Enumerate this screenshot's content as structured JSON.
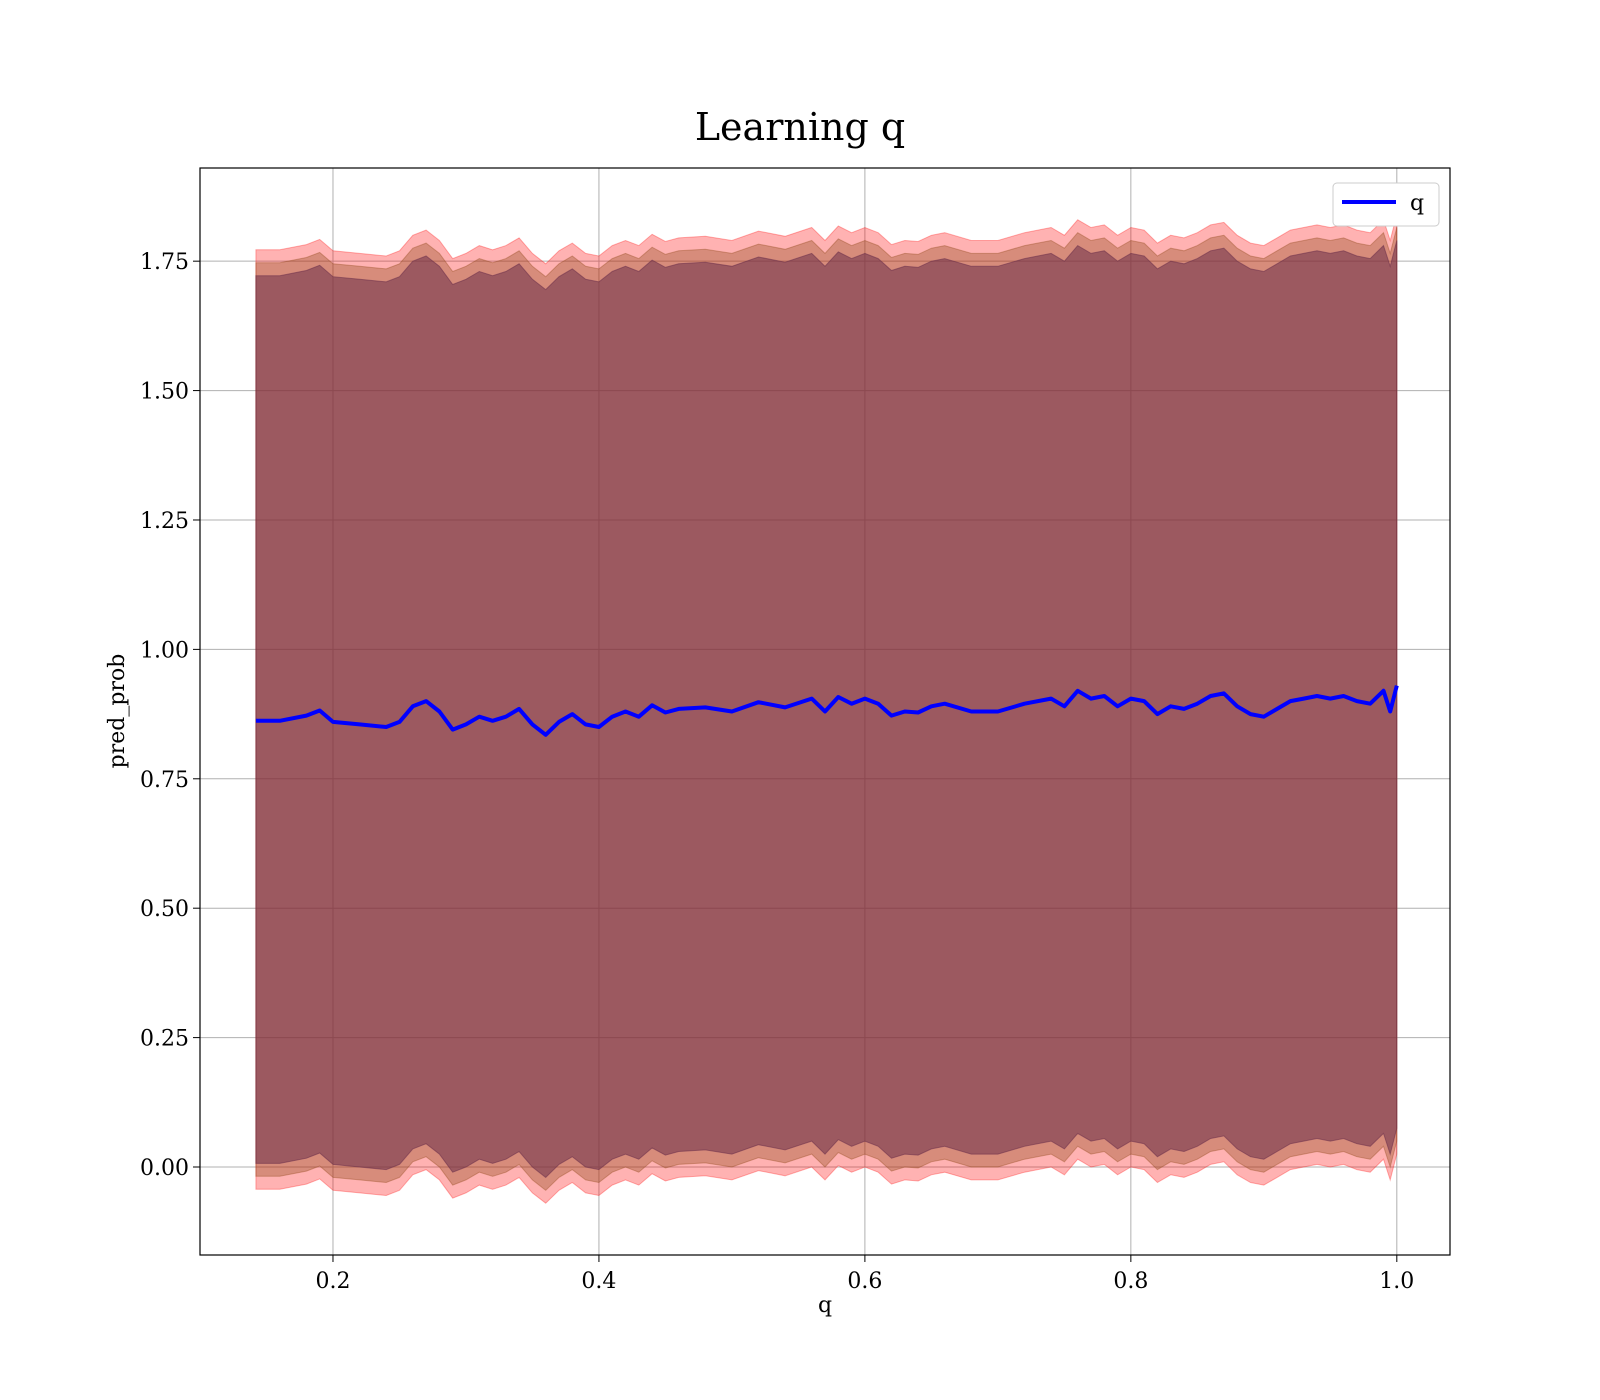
{
  "chart_data": {
    "type": "line",
    "title": "Learning q",
    "xlabel": "q",
    "ylabel": "pred_prob",
    "xlim": [
      0.1,
      1.04
    ],
    "ylim": [
      -0.17,
      1.93
    ],
    "xticks": [
      0.2,
      0.4,
      0.6,
      0.8,
      1.0
    ],
    "xtick_labels": [
      "0.2",
      "0.4",
      "0.6",
      "0.8",
      "1.0"
    ],
    "yticks": [
      0.0,
      0.25,
      0.5,
      0.75,
      1.0,
      1.25,
      1.5,
      1.75
    ],
    "ytick_labels": [
      "0.00",
      "0.25",
      "0.50",
      "0.75",
      "1.00",
      "1.25",
      "1.50",
      "1.75"
    ],
    "grid": true,
    "legend_position": "top-right",
    "series": [
      {
        "name": "q",
        "color": "#0000ff",
        "x": [
          0.142,
          0.16,
          0.18,
          0.19,
          0.2,
          0.22,
          0.24,
          0.25,
          0.26,
          0.27,
          0.28,
          0.29,
          0.3,
          0.31,
          0.32,
          0.33,
          0.34,
          0.35,
          0.36,
          0.37,
          0.38,
          0.39,
          0.4,
          0.41,
          0.42,
          0.43,
          0.44,
          0.45,
          0.46,
          0.48,
          0.5,
          0.52,
          0.54,
          0.56,
          0.57,
          0.58,
          0.59,
          0.6,
          0.61,
          0.62,
          0.63,
          0.64,
          0.65,
          0.66,
          0.68,
          0.7,
          0.72,
          0.74,
          0.75,
          0.76,
          0.77,
          0.78,
          0.79,
          0.8,
          0.81,
          0.82,
          0.83,
          0.84,
          0.85,
          0.86,
          0.87,
          0.88,
          0.89,
          0.9,
          0.91,
          0.92,
          0.93,
          0.94,
          0.95,
          0.96,
          0.97,
          0.98,
          0.99,
          0.995,
          1.0
        ],
        "y": [
          0.862,
          0.862,
          0.872,
          0.882,
          0.86,
          0.855,
          0.85,
          0.86,
          0.89,
          0.9,
          0.88,
          0.845,
          0.855,
          0.87,
          0.862,
          0.87,
          0.885,
          0.855,
          0.835,
          0.86,
          0.875,
          0.855,
          0.85,
          0.87,
          0.88,
          0.87,
          0.892,
          0.878,
          0.885,
          0.888,
          0.88,
          0.898,
          0.888,
          0.905,
          0.88,
          0.908,
          0.895,
          0.905,
          0.895,
          0.872,
          0.88,
          0.878,
          0.89,
          0.895,
          0.88,
          0.88,
          0.895,
          0.905,
          0.89,
          0.92,
          0.905,
          0.91,
          0.89,
          0.905,
          0.9,
          0.875,
          0.89,
          0.885,
          0.895,
          0.91,
          0.915,
          0.89,
          0.875,
          0.87,
          0.885,
          0.9,
          0.905,
          0.91,
          0.905,
          0.91,
          0.9,
          0.895,
          0.92,
          0.88,
          0.93
        ]
      }
    ],
    "bands": [
      {
        "color": "#ff0000",
        "opacity": 0.3,
        "offset_upper": 0.91,
        "offset_lower": 0.905
      },
      {
        "color": "#8b4513",
        "opacity": 0.35,
        "offset_upper": 0.885,
        "offset_lower": 0.88
      },
      {
        "color": "#6b2f4a",
        "opacity": 0.55,
        "offset_upper": 0.86,
        "offset_lower": 0.855
      }
    ]
  }
}
